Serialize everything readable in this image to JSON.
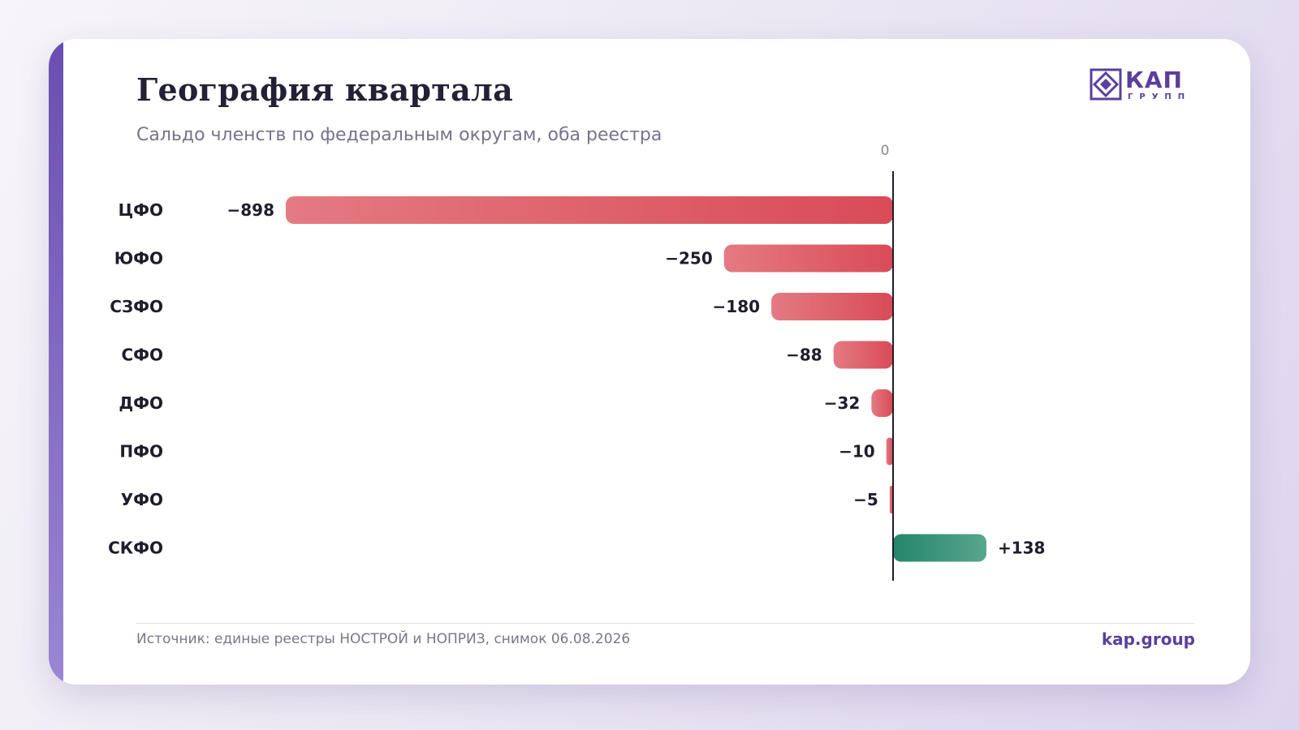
{
  "header": {
    "title": "География квартала",
    "subtitle": "Сальдо членств по федеральным округам, оба реестра"
  },
  "logo": {
    "main": "КАП",
    "sub": "ГРУПП",
    "icon": "diamond-mark-icon"
  },
  "footer": {
    "source": "Источник: единые реестры НОСТРОЙ и НОПРИЗ, снимок 06.08.2026",
    "site": "kap.group"
  },
  "colors": {
    "negative": "#d94b57",
    "positive": "#2a8a6d",
    "accent": "#5a3f9e"
  },
  "chart_data": {
    "type": "bar",
    "orientation": "horizontal",
    "title": "География квартала",
    "subtitle": "Сальдо членств по федеральным округам, оба реестра",
    "categories": [
      "ЦФО",
      "ЮФО",
      "СЗФО",
      "СФО",
      "ДФО",
      "ПФО",
      "УФО",
      "СКФО"
    ],
    "values": [
      -898,
      -250,
      -180,
      -88,
      -32,
      -10,
      -5,
      138
    ],
    "labels": [
      "−898",
      "−250",
      "−180",
      "−88",
      "−32",
      "−10",
      "−5",
      "+138"
    ],
    "zero_label": "0",
    "xlim": [
      -898,
      138
    ],
    "grid": false,
    "legend": "none"
  }
}
